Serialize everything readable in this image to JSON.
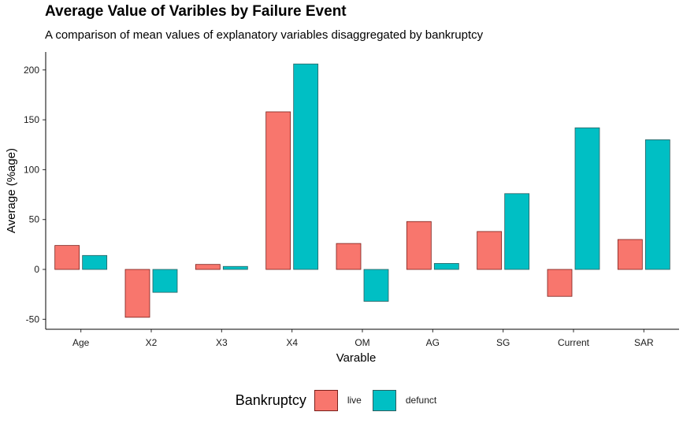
{
  "chart_data": {
    "type": "bar",
    "title": "Average Value of Varibles by Failure Event",
    "subtitle": "A comparison of mean values of explanatory variables disaggregated by bankruptcy",
    "xlabel": "Varable",
    "ylabel": "Average (%age)",
    "categories": [
      "Age",
      "X2",
      "X3",
      "X4",
      "OM",
      "AG",
      "SG",
      "Current",
      "SAR"
    ],
    "series": [
      {
        "name": "live",
        "color": "#F8766D",
        "values": [
          24,
          -48,
          5,
          158,
          26,
          48,
          38,
          -27,
          30
        ]
      },
      {
        "name": "defunct",
        "color": "#00BFC4",
        "values": [
          14,
          -23,
          3,
          206,
          -32,
          6,
          76,
          142,
          130
        ]
      }
    ],
    "ylim": [
      -60,
      218
    ],
    "yticks": [
      -50,
      0,
      50,
      100,
      150,
      200
    ],
    "grid": false,
    "legend_position": "bottom",
    "legend_title": "Bankruptcy"
  }
}
